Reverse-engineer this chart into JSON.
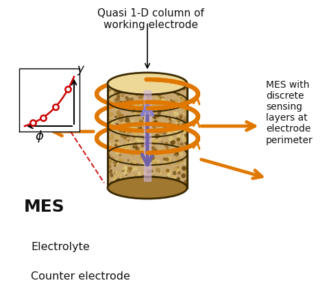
{
  "border_color": "#8B0000",
  "bg_color": "#FFFFFF",
  "label_quasi": "Quasi 1-D column of\nworking electrode",
  "label_mes_sensing": "MES with\ndiscrete\nsensing\nlayers at\nelectrode\nperimeter",
  "label_mes": "MES",
  "label_electrolyte": "Electrolyte",
  "label_counter": "Counter electrode",
  "label_y": "y",
  "label_phi": "ϕ",
  "orange_arrow": "#E07800",
  "purple_up": "#8B7FCC",
  "purple_down": "#7060A8",
  "halo_color": "#F5DEB3",
  "dashed_color": "#707070",
  "red_color": "#CC0000",
  "cyl_fill": "#C8A870",
  "cyl_dark": "#3A2800",
  "cyl_top": "#EDD898",
  "mes_face": "#A8D4E8",
  "mes_side": "#80B8D0",
  "mes_top": "#B8DCEE",
  "elec_face": "#B8D8EC",
  "elec_side": "#90BED8",
  "elec_top": "#C8E4F4",
  "counter_face": "#D0D0D0",
  "counter_side": "#B0B0B0",
  "counter_top": "#E0E0E0"
}
